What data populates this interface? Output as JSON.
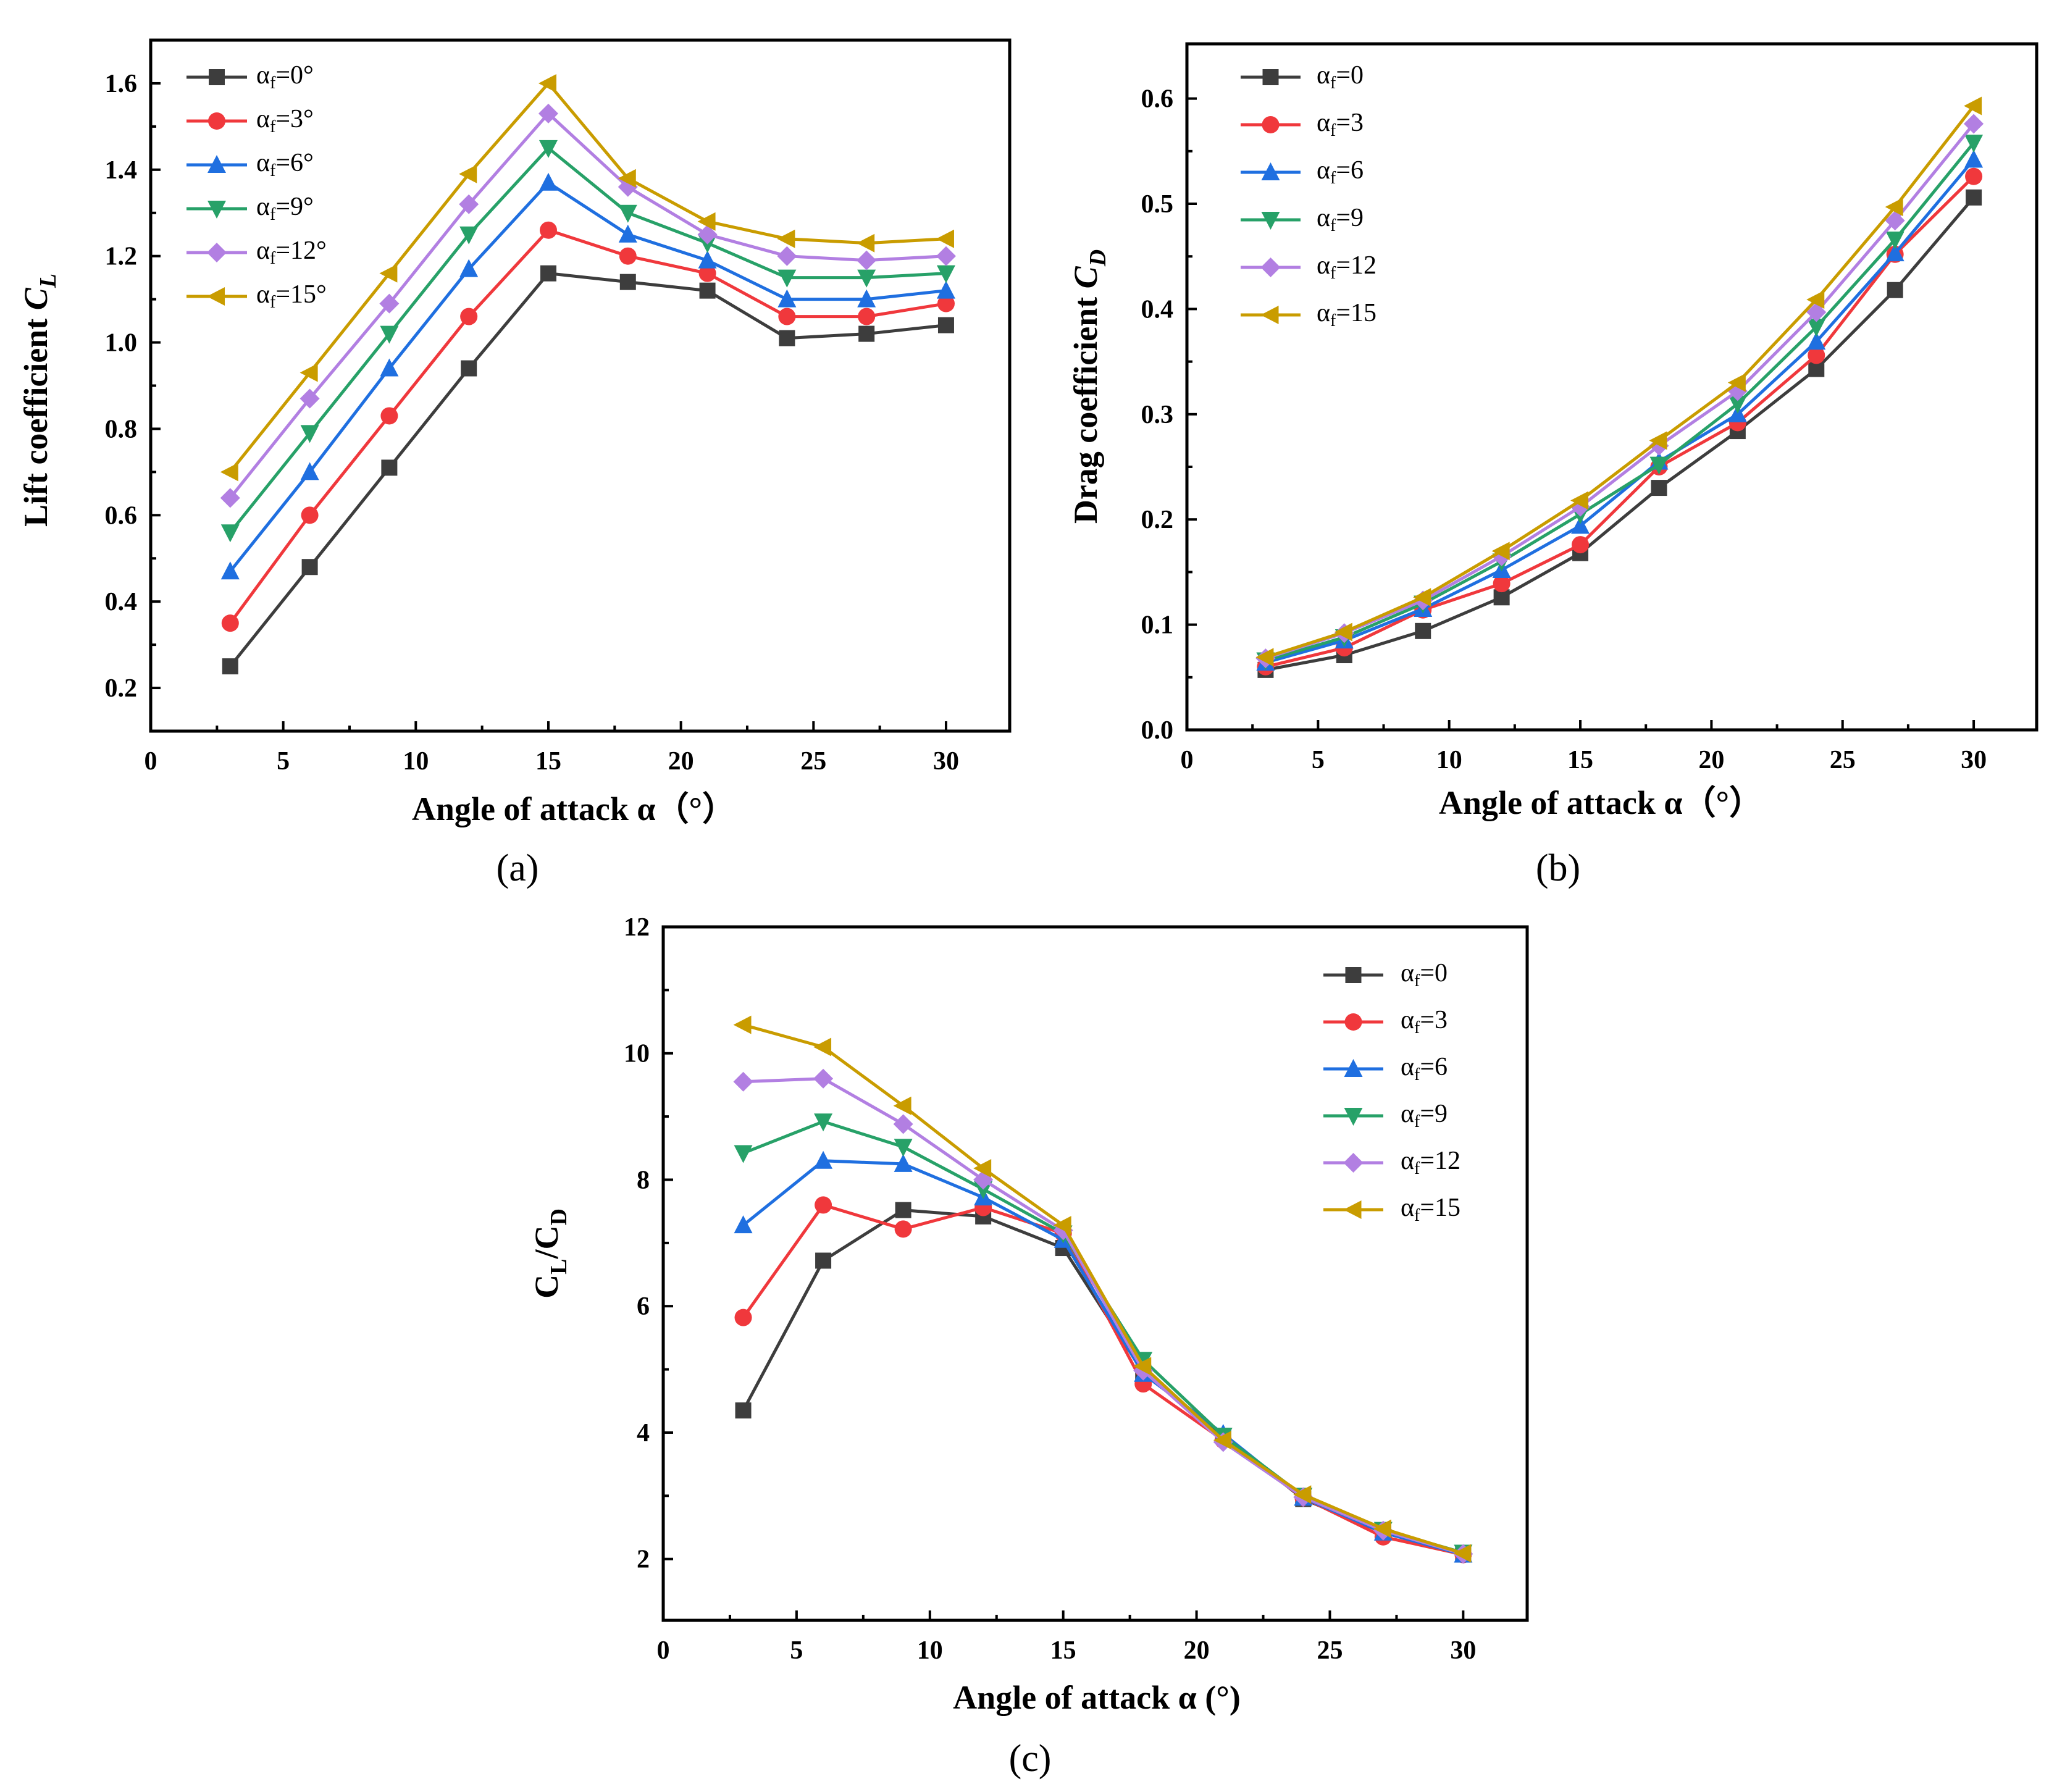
{
  "colors": [
    "#3d3d3d",
    "#f0383c",
    "#1f6fe0",
    "#27a168",
    "#b27fe2",
    "#c99c00"
  ],
  "chart_data": [
    {
      "id": "a",
      "type": "line",
      "panel_label": "(a)",
      "xlabel": "Angle of attack α（°）",
      "ylabel_text": "Lift coefficient ",
      "ylabel_symbol": "C",
      "ylabel_sub": "L",
      "xlim": [
        0,
        32.4
      ],
      "ylim": [
        0.1,
        1.7
      ],
      "xticks": [
        0,
        5,
        10,
        15,
        20,
        25,
        30
      ],
      "yticks": [
        0.2,
        0.4,
        0.6,
        0.8,
        1.0,
        1.2,
        1.4,
        1.6
      ],
      "ytick_decimals": 1,
      "legend_position": "top-left",
      "x": [
        3,
        6,
        9,
        12,
        15,
        18,
        21,
        24,
        27,
        30
      ],
      "series": [
        {
          "name": "αf=0°",
          "values": [
            0.25,
            0.48,
            0.71,
            0.94,
            1.16,
            1.14,
            1.12,
            1.01,
            1.02,
            1.04
          ]
        },
        {
          "name": "αf=3°",
          "values": [
            0.35,
            0.6,
            0.83,
            1.06,
            1.26,
            1.2,
            1.16,
            1.06,
            1.06,
            1.09
          ]
        },
        {
          "name": "αf=6°",
          "values": [
            0.47,
            0.7,
            0.94,
            1.17,
            1.37,
            1.25,
            1.19,
            1.1,
            1.1,
            1.12
          ]
        },
        {
          "name": "αf=9°",
          "values": [
            0.56,
            0.79,
            1.02,
            1.25,
            1.45,
            1.3,
            1.23,
            1.15,
            1.15,
            1.16
          ]
        },
        {
          "name": "αf=12°",
          "values": [
            0.64,
            0.87,
            1.09,
            1.32,
            1.53,
            1.36,
            1.25,
            1.2,
            1.19,
            1.2
          ]
        },
        {
          "name": "αf=15°",
          "values": [
            0.7,
            0.93,
            1.16,
            1.39,
            1.6,
            1.38,
            1.28,
            1.24,
            1.23,
            1.24
          ]
        }
      ]
    },
    {
      "id": "b",
      "type": "line",
      "panel_label": "(b)",
      "xlabel": "Angle of attack α（°）",
      "ylabel_text": "Drag coefficient ",
      "ylabel_symbol": "C",
      "ylabel_sub": "D",
      "xlim": [
        0,
        32.4
      ],
      "ylim": [
        0,
        0.652
      ],
      "xticks": [
        0,
        5,
        10,
        15,
        20,
        25,
        30
      ],
      "yticks": [
        0.0,
        0.1,
        0.2,
        0.3,
        0.4,
        0.5,
        0.6
      ],
      "ytick_decimals": 1,
      "legend_position": "top-left",
      "x": [
        3,
        6,
        9,
        12,
        15,
        18,
        21,
        24,
        27,
        30
      ],
      "series": [
        {
          "name": "αf=0",
          "values": [
            0.057,
            0.071,
            0.094,
            0.126,
            0.168,
            0.23,
            0.284,
            0.343,
            0.418,
            0.506
          ]
        },
        {
          "name": "αf=3",
          "values": [
            0.06,
            0.078,
            0.114,
            0.139,
            0.176,
            0.25,
            0.292,
            0.356,
            0.452,
            0.526
          ]
        },
        {
          "name": "αf=6",
          "values": [
            0.064,
            0.085,
            0.115,
            0.152,
            0.194,
            0.255,
            0.3,
            0.369,
            0.453,
            0.542
          ]
        },
        {
          "name": "αf=9",
          "values": [
            0.066,
            0.088,
            0.12,
            0.16,
            0.205,
            0.252,
            0.31,
            0.383,
            0.466,
            0.558
          ]
        },
        {
          "name": "αf=12",
          "values": [
            0.068,
            0.092,
            0.123,
            0.165,
            0.212,
            0.27,
            0.322,
            0.397,
            0.484,
            0.576
          ]
        },
        {
          "name": "αf=15",
          "values": [
            0.069,
            0.093,
            0.126,
            0.17,
            0.218,
            0.275,
            0.33,
            0.409,
            0.497,
            0.593
          ]
        }
      ]
    },
    {
      "id": "c",
      "type": "line",
      "panel_label": "(c)",
      "xlabel": "Angle of attack α (°)",
      "ylabel_text": "",
      "ylabel_symbol": "C",
      "ylabel_sub": "L",
      "ylabel_symbol2": "/C",
      "ylabel_sub2": "D",
      "xlim": [
        0,
        32.4
      ],
      "ylim": [
        1.03,
        12
      ],
      "xticks": [
        0,
        5,
        10,
        15,
        20,
        25,
        30
      ],
      "yticks": [
        2,
        4,
        6,
        8,
        10,
        12
      ],
      "ytick_decimals": 0,
      "legend_position": "top-right",
      "x": [
        3,
        6,
        9,
        12,
        15,
        18,
        21,
        24,
        27,
        30
      ],
      "series": [
        {
          "name": "αf=0",
          "values": [
            4.35,
            6.72,
            7.52,
            7.42,
            6.92,
            4.95,
            3.95,
            2.95,
            2.42,
            2.07
          ]
        },
        {
          "name": "αf=3",
          "values": [
            5.82,
            7.6,
            7.22,
            7.56,
            7.15,
            4.77,
            3.88,
            2.97,
            2.35,
            2.07
          ]
        },
        {
          "name": "αf=6",
          "values": [
            7.28,
            8.3,
            8.25,
            7.72,
            7.05,
            4.93,
            3.98,
            2.97,
            2.42,
            2.07
          ]
        },
        {
          "name": "αf=9",
          "values": [
            8.42,
            8.92,
            8.52,
            7.85,
            7.15,
            5.15,
            3.95,
            3.0,
            2.46,
            2.1
          ]
        },
        {
          "name": "αf=12",
          "values": [
            9.55,
            9.6,
            8.88,
            8.0,
            7.2,
            4.98,
            3.85,
            2.98,
            2.45,
            2.08
          ]
        },
        {
          "name": "αf=15",
          "values": [
            10.45,
            10.1,
            9.17,
            8.18,
            7.28,
            5.05,
            3.88,
            3.02,
            2.48,
            2.09
          ]
        }
      ]
    }
  ]
}
